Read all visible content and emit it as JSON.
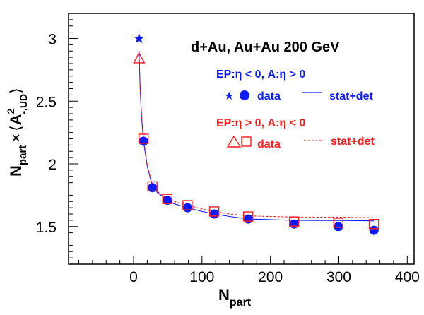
{
  "chart_data": {
    "type": "scatter",
    "title": "d+Au, Au+Au 200 GeV",
    "xlabel": "N",
    "xlabel_sub": "part",
    "ylabel": {
      "n": "N",
      "n_sub": "part",
      "times": "×",
      "lang": "⟨",
      "a": "A",
      "a_sup": "2",
      "a_sub": "-,UD",
      "rang": "⟩"
    },
    "xlim": [
      -95,
      410
    ],
    "ylim": [
      1.2,
      3.2
    ],
    "xticks": [
      0,
      100,
      200,
      300,
      400
    ],
    "yticks": [
      1.5,
      2,
      2.5,
      3
    ],
    "ytick_labels": [
      "1.5",
      "2",
      "2.5",
      "3"
    ],
    "grid": false,
    "legend_position": "top-right",
    "colors": {
      "blue": "#0a1aff",
      "red": "#ff1a1a"
    },
    "series": [
      {
        "name": "EP:η < 0, A:η > 0",
        "color": "#0a1aff",
        "marker": "filled-circle",
        "points": [
          [
            14.6,
            2.18
          ],
          [
            27.6,
            1.81
          ],
          [
            49.4,
            1.71
          ],
          [
            78.9,
            1.65
          ],
          [
            117.9,
            1.6
          ],
          [
            167.6,
            1.56
          ],
          [
            234.6,
            1.52
          ],
          [
            299.3,
            1.5
          ],
          [
            351.4,
            1.47
          ]
        ]
      },
      {
        "name": "EP:η > 0, A:η < 0",
        "color": "#ff1a1a",
        "marker": "open-square",
        "points": [
          [
            14.6,
            2.2
          ],
          [
            27.6,
            1.82
          ],
          [
            49.4,
            1.72
          ],
          [
            78.9,
            1.67
          ],
          [
            117.9,
            1.62
          ],
          [
            167.6,
            1.58
          ],
          [
            234.6,
            1.54
          ],
          [
            299.3,
            1.53
          ],
          [
            351.4,
            1.52
          ]
        ]
      },
      {
        "name": "d+Au blue",
        "color": "#0a1aff",
        "marker": "filled-star",
        "points": [
          [
            8.0,
            3.0
          ]
        ]
      },
      {
        "name": "d+Au red",
        "color": "#ff1a1a",
        "marker": "open-triangle",
        "points": [
          [
            8.0,
            2.84
          ]
        ]
      }
    ],
    "curves": [
      {
        "name": "blue stat+det",
        "color": "#0a1aff",
        "style": "solid",
        "points": [
          [
            8,
            2.9
          ],
          [
            10,
            2.55
          ],
          [
            12,
            2.35
          ],
          [
            14.6,
            2.18
          ],
          [
            20,
            1.98
          ],
          [
            27.6,
            1.82
          ],
          [
            35,
            1.77
          ],
          [
            49.4,
            1.71
          ],
          [
            60,
            1.68
          ],
          [
            78.9,
            1.65
          ],
          [
            100,
            1.62
          ],
          [
            117.9,
            1.6
          ],
          [
            140,
            1.58
          ],
          [
            167.6,
            1.56
          ],
          [
            200,
            1.555
          ],
          [
            234.6,
            1.55
          ],
          [
            270,
            1.548
          ],
          [
            299.3,
            1.548
          ],
          [
            330,
            1.547
          ],
          [
            351.4,
            1.545
          ]
        ]
      },
      {
        "name": "red stat+det",
        "color": "#ff1a1a",
        "style": "dashed",
        "points": [
          [
            8,
            2.84
          ],
          [
            10,
            2.56
          ],
          [
            12,
            2.36
          ],
          [
            14.6,
            2.2
          ],
          [
            20,
            1.99
          ],
          [
            27.6,
            1.83
          ],
          [
            35,
            1.78
          ],
          [
            49.4,
            1.72
          ],
          [
            60,
            1.7
          ],
          [
            78.9,
            1.67
          ],
          [
            100,
            1.64
          ],
          [
            117.9,
            1.62
          ],
          [
            140,
            1.6
          ],
          [
            167.6,
            1.585
          ],
          [
            200,
            1.58
          ],
          [
            234.6,
            1.575
          ],
          [
            270,
            1.575
          ],
          [
            299.3,
            1.575
          ],
          [
            330,
            1.572
          ],
          [
            351.4,
            1.57
          ]
        ]
      }
    ],
    "legend": {
      "blue_header": "EP:η < 0, A:η > 0",
      "blue_data_label": "data",
      "blue_line_label": "stat+det",
      "red_header": "EP:η > 0, A:η < 0",
      "red_data_label": "data",
      "red_line_label": "stat+det"
    }
  }
}
